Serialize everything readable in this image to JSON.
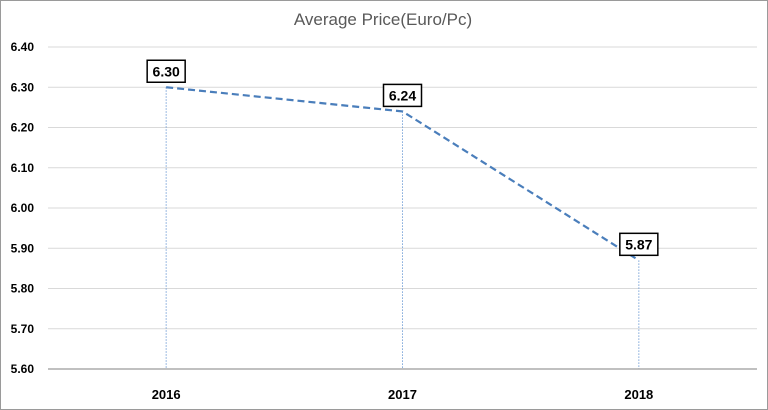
{
  "chart_data": {
    "type": "line",
    "title": "Average Price(Euro/Pc)",
    "categories": [
      "2016",
      "2017",
      "2018"
    ],
    "series": [
      {
        "values": [
          6.3,
          6.24,
          5.87
        ]
      }
    ],
    "data_labels": [
      "6.30",
      "6.24",
      "5.87"
    ],
    "y_ticks": [
      "5.60",
      "5.70",
      "5.80",
      "5.90",
      "6.00",
      "6.10",
      "6.20",
      "6.30",
      "6.40"
    ],
    "ylim": [
      5.6,
      6.4
    ],
    "grid": true,
    "legend": "none",
    "colors": {
      "line": "#4a7ebb",
      "drop_line": "#7ea6d9",
      "grid": "#d9d9d9",
      "axis": "#808080"
    }
  }
}
